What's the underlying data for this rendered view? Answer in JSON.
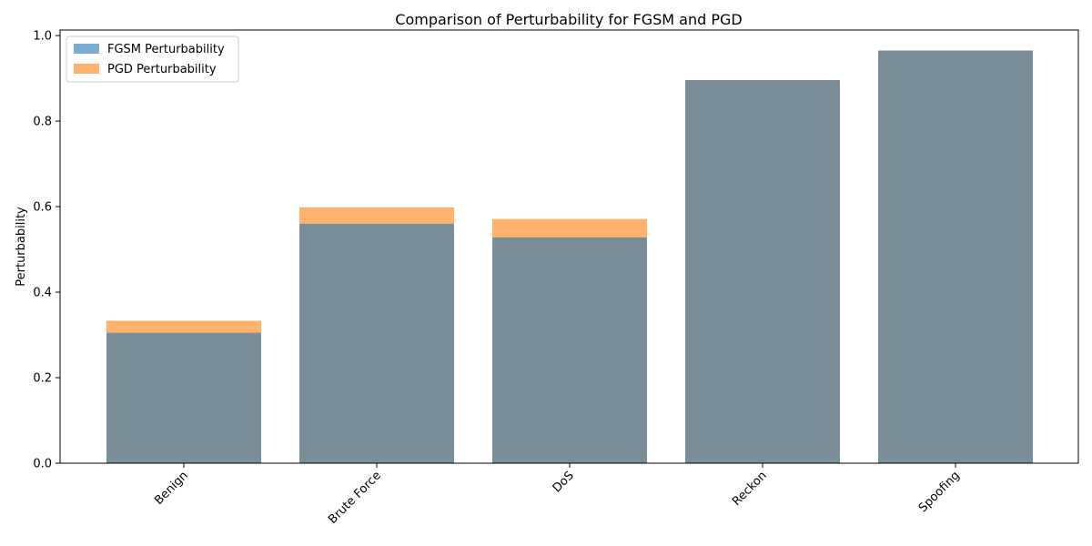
{
  "chart_data": {
    "type": "bar",
    "title": "Comparison of Perturbability for FGSM and PGD",
    "xlabel": "",
    "ylabel": "Perturbability",
    "categories": [
      "Benign",
      "Brute Force",
      "DoS",
      "Reckon",
      "Spoofing"
    ],
    "series": [
      {
        "name": "FGSM Perturbability",
        "values": [
          0.305,
          0.56,
          0.528,
          0.896,
          0.965
        ],
        "color": "#1f77b4",
        "opacity": 0.6
      },
      {
        "name": "PGD Perturbability",
        "values": [
          0.333,
          0.598,
          0.571,
          0.896,
          0.965
        ],
        "color": "#ff7f0e",
        "opacity": 0.6
      }
    ],
    "ylim": [
      0,
      1.013
    ],
    "yticks": [
      0.0,
      0.2,
      0.4,
      0.6,
      0.8,
      1.0
    ],
    "ytick_labels": [
      "0.0",
      "0.2",
      "0.4",
      "0.6",
      "0.8",
      "1.0"
    ],
    "xtick_rotation": 45,
    "legend_position": "top-left",
    "grid": false,
    "overlay_bars": true
  }
}
